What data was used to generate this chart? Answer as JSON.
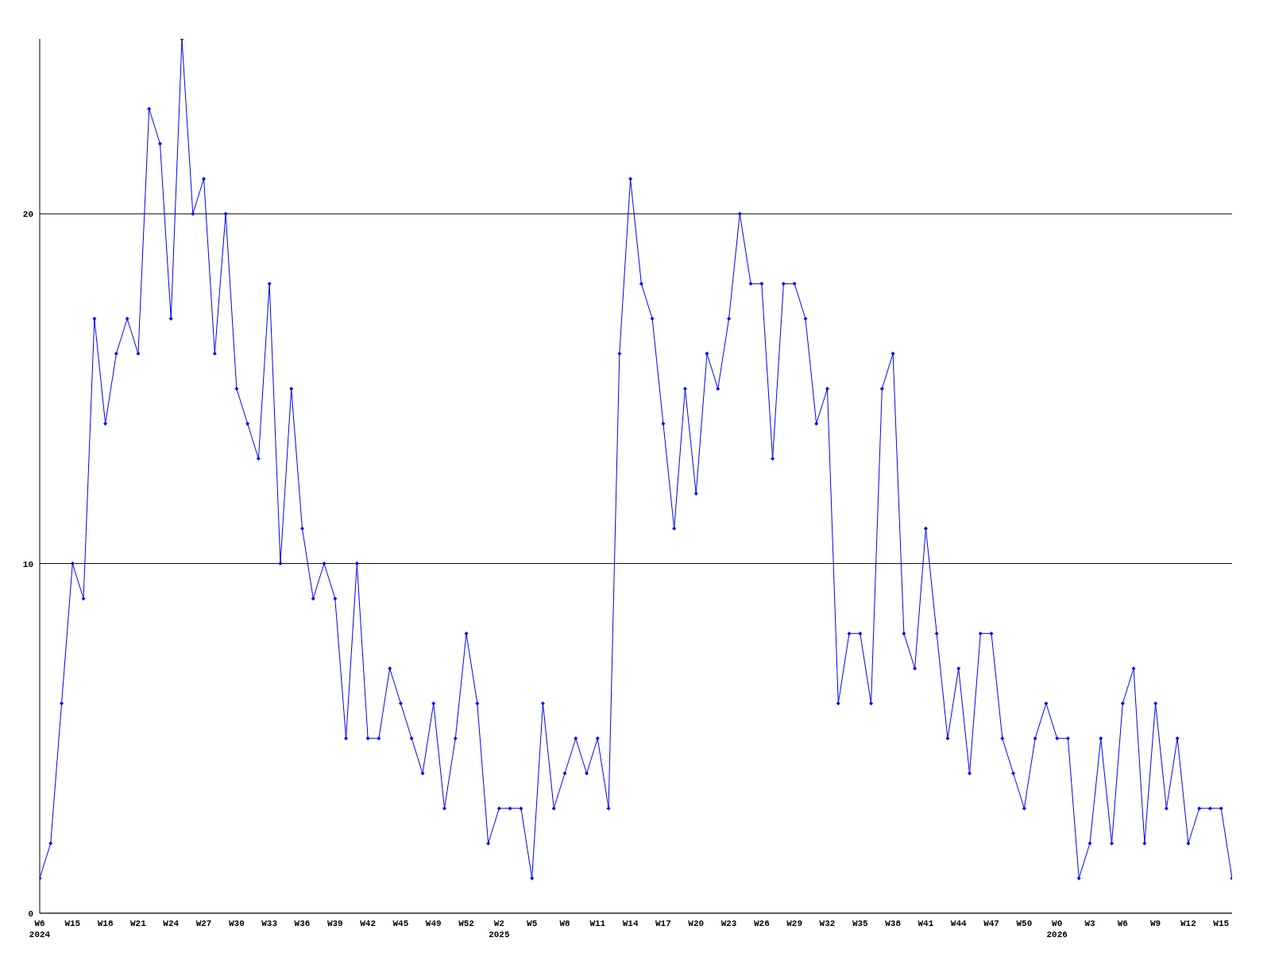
{
  "chart_data": {
    "type": "line",
    "categories": [
      "W6\n2024",
      null,
      null,
      "W15",
      null,
      null,
      "W18",
      null,
      null,
      "W21",
      null,
      null,
      "W24",
      null,
      null,
      "W27",
      null,
      null,
      "W30",
      null,
      null,
      "W33",
      null,
      null,
      "W36",
      null,
      null,
      "W39",
      null,
      null,
      "W42",
      null,
      null,
      "W45",
      null,
      null,
      "W49",
      null,
      null,
      "W52",
      null,
      null,
      "W2\n2025",
      null,
      null,
      "W5",
      null,
      null,
      "W8",
      null,
      null,
      "W11",
      null,
      null,
      "W14",
      null,
      null,
      "W17",
      null,
      null,
      "W20",
      null,
      null,
      "W23",
      null,
      null,
      "W26",
      null,
      null,
      "W29",
      null,
      null,
      "W32",
      null,
      null,
      "W35",
      null,
      null,
      "W38",
      null,
      null,
      "W41",
      null,
      null,
      "W44",
      null,
      null,
      "W47",
      null,
      null,
      "W50",
      null,
      null,
      "W0\n2026",
      null,
      null,
      "W3",
      null,
      null,
      "W6",
      null,
      null,
      "W9",
      null,
      null,
      "W12",
      null,
      null,
      "W15",
      null
    ],
    "series": [
      {
        "color": "#0000ff",
        "values": [
          1,
          2,
          6,
          10,
          9,
          17,
          14,
          16,
          17,
          16,
          23,
          22,
          17,
          25,
          20,
          21,
          16,
          20,
          15,
          14,
          13,
          18,
          10,
          15,
          11,
          9,
          10,
          9,
          5,
          10,
          5,
          5,
          7,
          6,
          5,
          4,
          6,
          3,
          5,
          8,
          6,
          2,
          3,
          3,
          3,
          1,
          6,
          3,
          4,
          5,
          4,
          5,
          3,
          16,
          21,
          18,
          17,
          14,
          11,
          15,
          12,
          16,
          15,
          17,
          20,
          18,
          18,
          13,
          18,
          18,
          17,
          14,
          15,
          6,
          8,
          8,
          6,
          15,
          16,
          8,
          7,
          11,
          8,
          5,
          7,
          4,
          8,
          8,
          5,
          4,
          3,
          5,
          6,
          5,
          5,
          1,
          2,
          5,
          2,
          6,
          7,
          2,
          6,
          3,
          5,
          2,
          3,
          3,
          3,
          1
        ]
      }
    ],
    "ylim": [
      0,
      25
    ],
    "yticks": [
      0,
      10,
      20
    ],
    "grid": "y",
    "marker": "diamond",
    "line_style": "solid",
    "legend": false
  }
}
